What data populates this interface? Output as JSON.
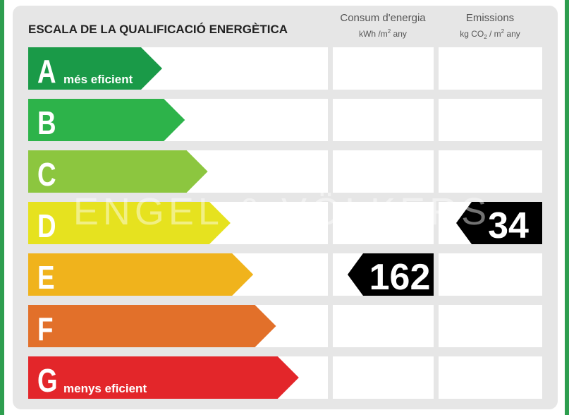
{
  "title": "ESCALA DE LA QUALIFICACIÓ ENERGÈTICA",
  "columns": [
    {
      "title": "Consum d'energia",
      "unit": {
        "text": "kWh /m",
        "sup": "2",
        "rest": " any"
      }
    },
    {
      "title": "Emissions",
      "unit": {
        "text": "kg CO",
        "sub": "2",
        "mid": " / m",
        "sup": "2",
        "rest": " any"
      }
    }
  ],
  "rows": [
    {
      "letter": "A",
      "color": "#1a9a48",
      "note": "més eficient"
    },
    {
      "letter": "B",
      "color": "#2db34a"
    },
    {
      "letter": "C",
      "color": "#8cc63f"
    },
    {
      "letter": "D",
      "color": "#e6e21f"
    },
    {
      "letter": "E",
      "color": "#f0b31c"
    },
    {
      "letter": "F",
      "color": "#e2702a"
    },
    {
      "letter": "G",
      "color": "#e3262a",
      "note": "menys eficient"
    }
  ],
  "ratings": [
    {
      "column": 0,
      "class": "E",
      "value": 162
    },
    {
      "column": 1,
      "class": "D",
      "value": 34
    }
  ],
  "watermark": "ENGEL & VÖLKERS"
}
